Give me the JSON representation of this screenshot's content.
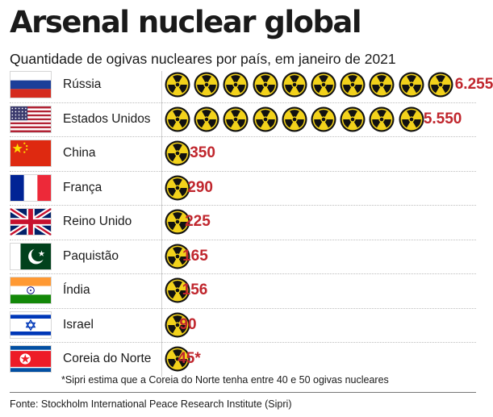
{
  "title": "Arsenal nuclear global",
  "subtitle": "Quantidade de ogivas nucleares por país, em janeiro de 2021",
  "note": "*Sipri estima que a Coreia do Norte tenha entre 40 e 50 ogivas nucleares",
  "source": "Fonte: Stockholm International Peace Research Institute (Sipri)",
  "icon": "radiation-icon",
  "colors": {
    "value_red": "#c0262d",
    "icon_yellow": "#f2d21b",
    "icon_black": "#111111"
  },
  "chart_data": {
    "type": "bar",
    "unit_per_icon": 650,
    "categories": [
      "Rússia",
      "Estados Unidos",
      "China",
      "França",
      "Reino Unido",
      "Paquistão",
      "Índia",
      "Israel",
      "Coreia do Norte"
    ],
    "values": [
      6255,
      5550,
      350,
      290,
      225,
      165,
      156,
      90,
      45
    ],
    "value_labels": [
      "6.255",
      "5.550",
      "350",
      "290",
      "225",
      "165",
      "156",
      "90",
      "45*"
    ],
    "flags": [
      "russia",
      "usa",
      "china",
      "france",
      "uk",
      "pakistan",
      "india",
      "israel",
      "north-korea"
    ]
  }
}
